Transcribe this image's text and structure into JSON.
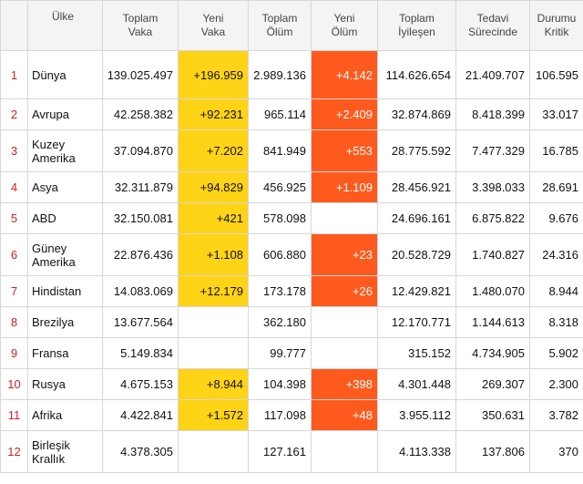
{
  "headers": {
    "rank": "",
    "country": "Ülke",
    "total_cases": "Toplam\nVaka",
    "new_cases": "Yeni\nVaka",
    "total_deaths": "Toplam\nÖlüm",
    "new_deaths": "Yeni\nÖlüm",
    "total_recovered": "Toplam\nİyileşen",
    "active": "Tedavi\nSürecinde",
    "critical": "Durumu\nKritik"
  },
  "colors": {
    "new_cases_highlight": "#ffd316",
    "new_deaths_highlight": "#ff5a1e",
    "rank_text": "#d42020"
  },
  "rows": [
    {
      "rank": "1",
      "country": "Dünya",
      "total_cases": "139.025.497",
      "new_cases": "+196.959",
      "total_deaths": "2.989.136",
      "new_deaths": "+4.142",
      "total_recovered": "114.626.654",
      "active": "21.409.707",
      "critical": "106.595"
    },
    {
      "rank": "2",
      "country": "Avrupa",
      "total_cases": "42.258.382",
      "new_cases": "+92.231",
      "total_deaths": "965.114",
      "new_deaths": "+2.409",
      "total_recovered": "32.874.869",
      "active": "8.418.399",
      "critical": "33.017"
    },
    {
      "rank": "3",
      "country": "Kuzey\nAmerika",
      "total_cases": "37.094.870",
      "new_cases": "+7.202",
      "total_deaths": "841.949",
      "new_deaths": "+553",
      "total_recovered": "28.775.592",
      "active": "7.477.329",
      "critical": "16.785"
    },
    {
      "rank": "4",
      "country": "Asya",
      "total_cases": "32.311.879",
      "new_cases": "+94.829",
      "total_deaths": "456.925",
      "new_deaths": "+1.109",
      "total_recovered": "28.456.921",
      "active": "3.398.033",
      "critical": "28.691"
    },
    {
      "rank": "5",
      "country": "ABD",
      "total_cases": "32.150.081",
      "new_cases": "+421",
      "total_deaths": "578.098",
      "new_deaths": "",
      "total_recovered": "24.696.161",
      "active": "6.875.822",
      "critical": "9.676"
    },
    {
      "rank": "6",
      "country": "Güney\nAmerika",
      "total_cases": "22.876.436",
      "new_cases": "+1.108",
      "total_deaths": "606.880",
      "new_deaths": "+23",
      "total_recovered": "20.528.729",
      "active": "1.740.827",
      "critical": "24.316"
    },
    {
      "rank": "7",
      "country": "Hindistan",
      "total_cases": "14.083.069",
      "new_cases": "+12.179",
      "total_deaths": "173.178",
      "new_deaths": "+26",
      "total_recovered": "12.429.821",
      "active": "1.480.070",
      "critical": "8.944"
    },
    {
      "rank": "8",
      "country": "Brezilya",
      "total_cases": "13.677.564",
      "new_cases": "",
      "total_deaths": "362.180",
      "new_deaths": "",
      "total_recovered": "12.170.771",
      "active": "1.144.613",
      "critical": "8.318"
    },
    {
      "rank": "9",
      "country": "Fransa",
      "total_cases": "5.149.834",
      "new_cases": "",
      "total_deaths": "99.777",
      "new_deaths": "",
      "total_recovered": "315.152",
      "active": "4.734.905",
      "critical": "5.902"
    },
    {
      "rank": "10",
      "country": "Rusya",
      "total_cases": "4.675.153",
      "new_cases": "+8.944",
      "total_deaths": "104.398",
      "new_deaths": "+398",
      "total_recovered": "4.301.448",
      "active": "269.307",
      "critical": "2.300"
    },
    {
      "rank": "11",
      "country": "Afrika",
      "total_cases": "4.422.841",
      "new_cases": "+1.572",
      "total_deaths": "117.098",
      "new_deaths": "+48",
      "total_recovered": "3.955.112",
      "active": "350.631",
      "critical": "3.782"
    },
    {
      "rank": "12",
      "country": "Birleşik\nKrallık",
      "total_cases": "4.378.305",
      "new_cases": "",
      "total_deaths": "127.161",
      "new_deaths": "",
      "total_recovered": "4.113.338",
      "active": "137.806",
      "critical": "370"
    }
  ]
}
